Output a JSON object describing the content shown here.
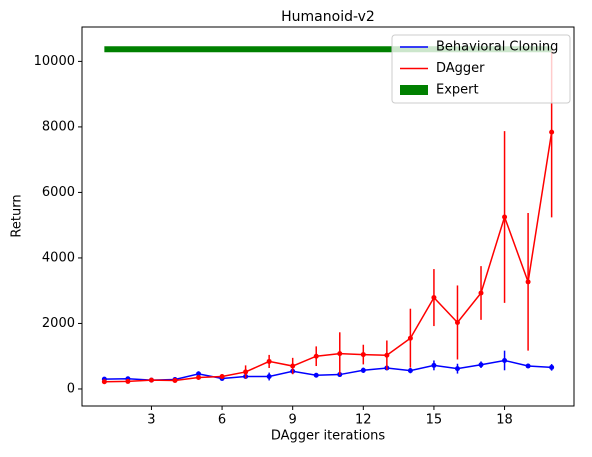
{
  "chart_data": {
    "type": "line",
    "title": "Humanoid-v2",
    "xlabel": "DAgger iterations",
    "ylabel": "Return",
    "x": [
      1,
      2,
      3,
      4,
      5,
      6,
      7,
      8,
      9,
      10,
      11,
      12,
      13,
      14,
      15,
      16,
      17,
      18,
      19,
      20
    ],
    "series": [
      {
        "name": "Behavioral Cloning",
        "color": "#0000ff",
        "linewidth": 1.5,
        "values": [
          300,
          310,
          270,
          290,
          460,
          320,
          380,
          380,
          540,
          420,
          440,
          570,
          640,
          560,
          720,
          620,
          740,
          870,
          700,
          660
        ],
        "errors": [
          30,
          30,
          30,
          40,
          80,
          40,
          60,
          120,
          60,
          60,
          50,
          80,
          60,
          80,
          150,
          150,
          100,
          300,
          60,
          100
        ]
      },
      {
        "name": "DAgger",
        "color": "#ff0000",
        "linewidth": 1.5,
        "values": [
          220,
          230,
          270,
          260,
          350,
          380,
          520,
          840,
          700,
          1000,
          1080,
          1050,
          1030,
          1550,
          2790,
          2030,
          2930,
          5250,
          3270,
          7840
        ],
        "errors": [
          30,
          30,
          30,
          40,
          60,
          60,
          200,
          200,
          250,
          300,
          650,
          300,
          450,
          900,
          870,
          1130,
          820,
          2620,
          2100,
          2600
        ]
      },
      {
        "name": "Expert",
        "color": "#008000",
        "linewidth": 6,
        "values": [
          10370,
          10370,
          10370,
          10370,
          10370,
          10370,
          10370,
          10370,
          10370,
          10370,
          10370,
          10370,
          10370,
          10370,
          10370,
          10370,
          10370,
          10370,
          10370,
          10370
        ]
      }
    ],
    "xlim": [
      0.05,
      20.95
    ],
    "ylim": [
      -520,
      11050
    ],
    "xticks": [
      3,
      6,
      9,
      12,
      15,
      18
    ],
    "yticks": [
      0,
      2000,
      4000,
      6000,
      8000,
      10000
    ],
    "legend": "upper right"
  }
}
